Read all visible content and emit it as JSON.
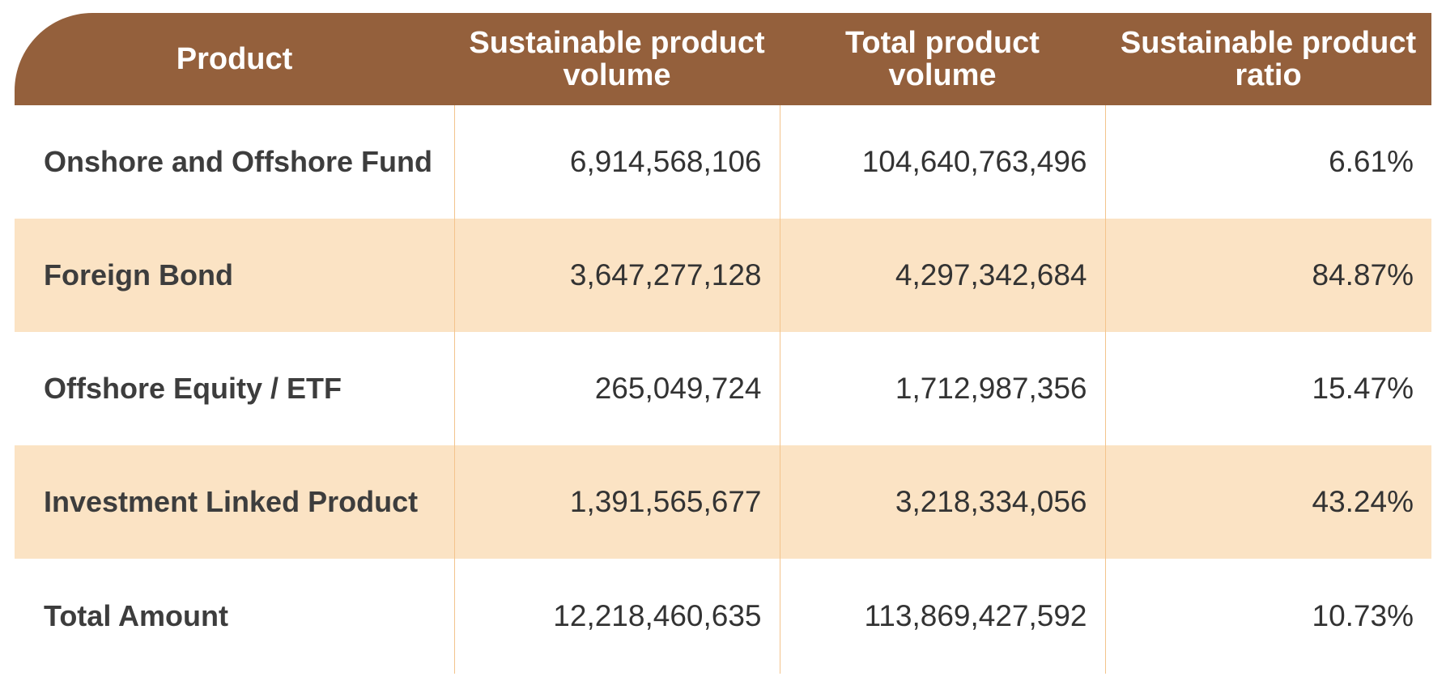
{
  "table": {
    "headers": [
      "Product",
      "Sustainable product volume",
      "Total product volume",
      "Sustainable product ratio"
    ],
    "rows": [
      {
        "product": "Onshore and Offshore Fund",
        "sustainable_volume": "6,914,568,106",
        "total_volume": "104,640,763,496",
        "ratio": "6.61%"
      },
      {
        "product": "Foreign Bond",
        "sustainable_volume": "3,647,277,128",
        "total_volume": "4,297,342,684",
        "ratio": "84.87%"
      },
      {
        "product": "Offshore Equity / ETF",
        "sustainable_volume": "265,049,724",
        "total_volume": "1,712,987,356",
        "ratio": "15.47%"
      },
      {
        "product": "Investment Linked Product",
        "sustainable_volume": "1,391,565,677",
        "total_volume": "3,218,334,056",
        "ratio": "43.24%"
      },
      {
        "product": "Total Amount",
        "sustainable_volume": "12,218,460,635",
        "total_volume": "113,869,427,592",
        "ratio": "10.73%"
      }
    ]
  },
  "colors": {
    "header_background": "#94603c",
    "header_text": "#ffffff",
    "alternate_row": "#fbe3c4",
    "column_divider": "#f3c48c"
  }
}
